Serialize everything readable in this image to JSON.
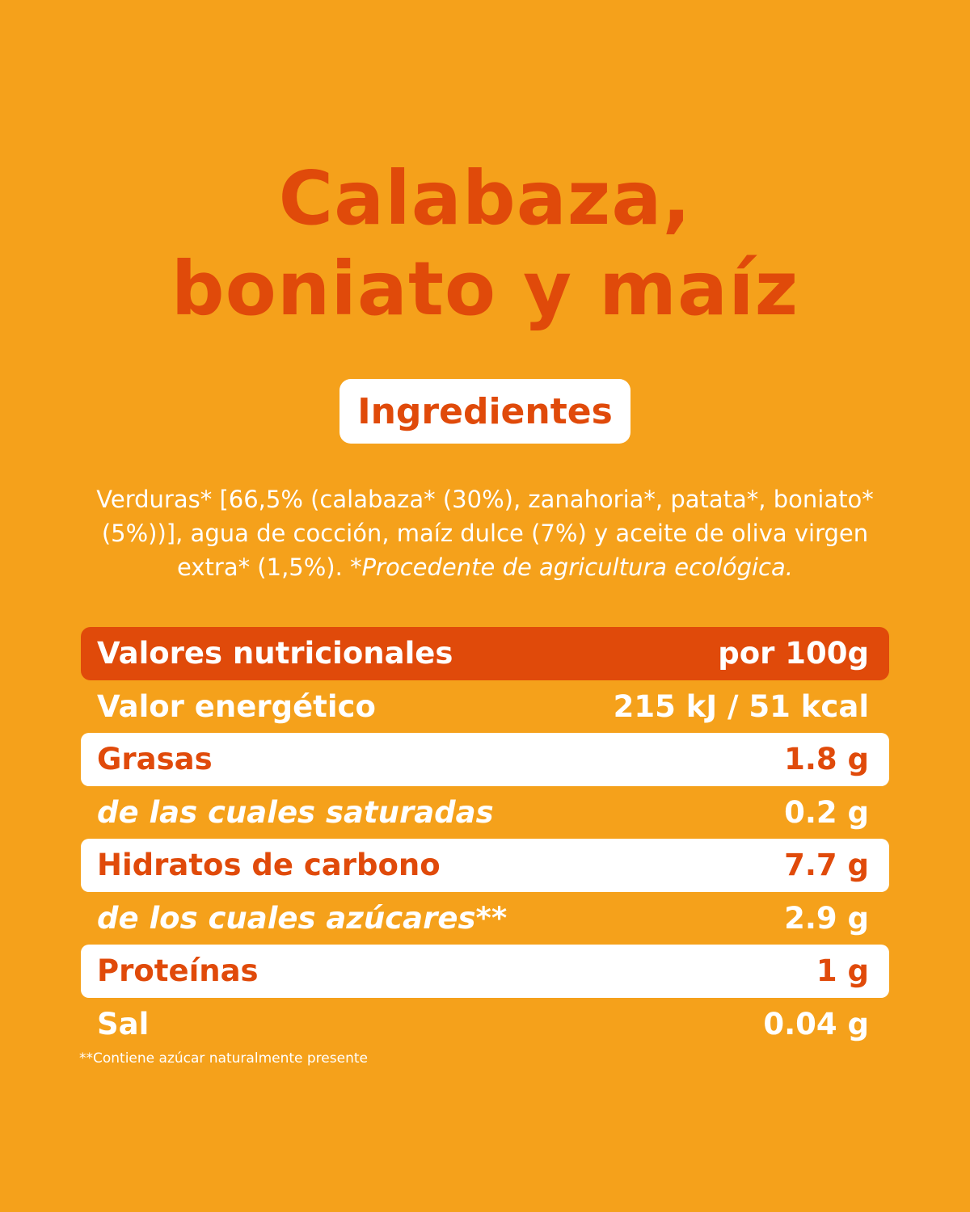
{
  "title": {
    "line1": "Calabaza,",
    "line2": "boniato y maíz"
  },
  "ingredients": {
    "heading": "Ingredientes",
    "text": "Verduras* [66,5% (calabaza* (30%), zanahoria*, patata*, boniato* (5%))], agua de cocción, maíz dulce (7%) y aceite de oliva virgen extra* (1,5%).",
    "note": "*Procedente de agricultura ecológica."
  },
  "nutrition": {
    "header_label": "Valores nutricionales",
    "header_value": "por 100g",
    "rows": [
      {
        "label": "Valor energético",
        "value": "215 kJ / 51 kcal"
      },
      {
        "label": "Grasas",
        "value": "1.8 g"
      },
      {
        "label": "de las cuales saturadas",
        "value": "0.2 g"
      },
      {
        "label": "Hidratos de carbono",
        "value": "7.7 g"
      },
      {
        "label": "de los cuales azúcares**",
        "value": "2.9 g"
      },
      {
        "label": "Proteínas",
        "value": "1 g"
      },
      {
        "label": "Sal",
        "value": "0.04 g"
      }
    ]
  },
  "footnote": "**Contiene azúcar naturalmente presente",
  "colors": {
    "background": "#f5a11b",
    "accent": "#e04a0a",
    "white": "#ffffff"
  }
}
